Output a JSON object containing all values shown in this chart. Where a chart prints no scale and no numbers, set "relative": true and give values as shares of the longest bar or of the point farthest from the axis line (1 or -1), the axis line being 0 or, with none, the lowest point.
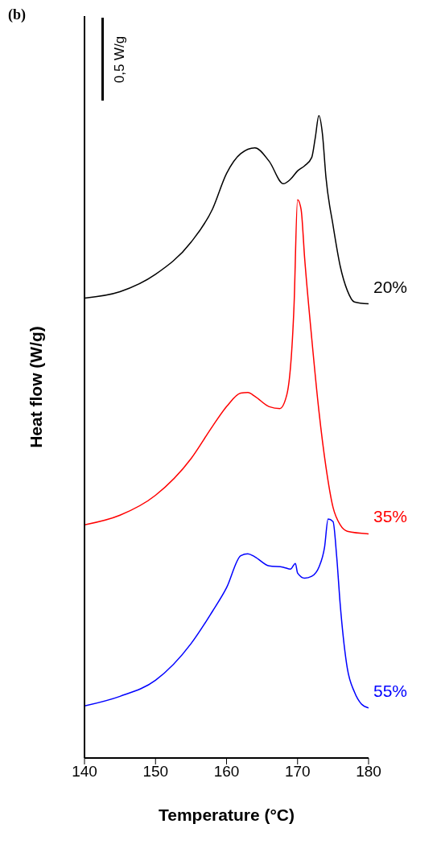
{
  "chart_data": {
    "type": "line",
    "title": "(b)",
    "xlabel": "Temperature (°C)",
    "ylabel": "Heat flow (W/g)",
    "relative": true,
    "xlim": [
      140,
      180
    ],
    "xticks": [
      140,
      150,
      160,
      170,
      180
    ],
    "legend": false,
    "grid": false,
    "marker": "none",
    "annotations": [
      "0,5 W/g"
    ],
    "series": [
      {
        "name": "20%",
        "color": "#000000",
        "x": [
          140,
          145,
          150,
          155,
          158,
          160,
          162,
          164,
          166,
          168,
          169,
          170,
          171,
          172,
          172.5,
          173,
          173.5,
          174,
          175,
          176,
          177,
          178,
          180
        ],
        "values": [
          0.716,
          0.726,
          0.753,
          0.803,
          0.854,
          0.91,
          0.941,
          0.95,
          0.929,
          0.894,
          0.901,
          0.914,
          0.922,
          0.935,
          0.966,
          1,
          0.972,
          0.904,
          0.829,
          0.766,
          0.728,
          0.71,
          0.707
        ]
      },
      {
        "name": "35%",
        "color": "#ff0000",
        "x": [
          140,
          145,
          150,
          155,
          158,
          160,
          162,
          163,
          164,
          166,
          167.5,
          168.5,
          169.5,
          170,
          170.5,
          171,
          172,
          173,
          174,
          175,
          176,
          177,
          180
        ],
        "values": [
          0.363,
          0.378,
          0.409,
          0.466,
          0.516,
          0.547,
          0.568,
          0.569,
          0.563,
          0.547,
          0.544,
          0.566,
          0.703,
          0.869,
          0.854,
          0.778,
          0.653,
          0.541,
          0.453,
          0.39,
          0.363,
          0.353,
          0.349
        ]
      },
      {
        "name": "55%",
        "color": "#0000ff",
        "x": [
          140,
          145,
          150,
          155,
          158,
          160,
          162,
          163,
          164,
          166,
          168,
          169,
          169.7,
          170,
          171,
          172,
          173,
          173.8,
          174.3,
          175,
          175.5,
          176,
          177,
          178,
          179,
          180
        ],
        "values": [
          0.081,
          0.096,
          0.121,
          0.178,
          0.228,
          0.265,
          0.315,
          0.318,
          0.313,
          0.299,
          0.297,
          0.294,
          0.303,
          0.288,
          0.28,
          0.283,
          0.297,
          0.328,
          0.372,
          0.368,
          0.315,
          0.24,
          0.14,
          0.103,
          0.084,
          0.078
        ]
      }
    ]
  }
}
